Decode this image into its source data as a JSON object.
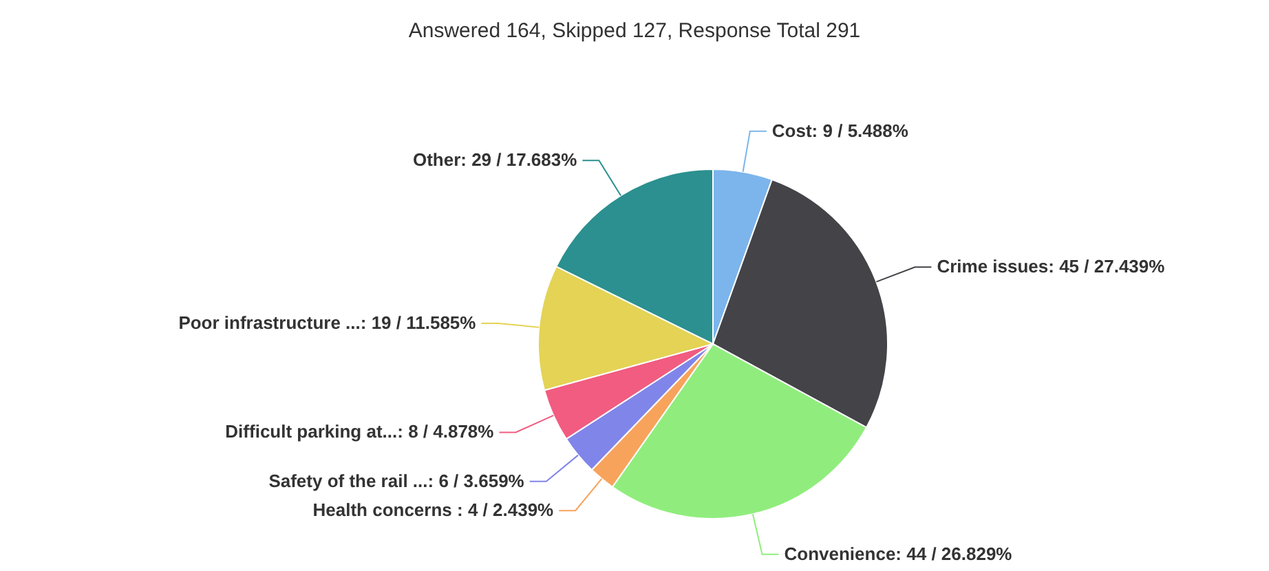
{
  "chart_data": {
    "type": "pie",
    "title": "Answered 164, Skipped 127, Response Total 291",
    "categories": [
      "Cost",
      "Crime issues",
      "Convenience",
      "Health concerns ",
      "Safety of the rail ...",
      "Difficult parking at...",
      "Poor infrastructure ...",
      "Other"
    ],
    "values": [
      9,
      45,
      44,
      4,
      6,
      8,
      19,
      29
    ],
    "value_labels": [
      "9 / 5.488%",
      "45 / 27.439%",
      "44 / 26.829%",
      "4 / 2.439%",
      "6 / 3.659%",
      "8 / 4.878%",
      "19 / 11.585%",
      "29 / 17.683%"
    ],
    "colors": [
      "#7cb5ec",
      "#434348",
      "#90ed7d",
      "#f7a35c",
      "#8085e9",
      "#f15c80",
      "#e4d354",
      "#2b908f"
    ],
    "legend": false
  }
}
